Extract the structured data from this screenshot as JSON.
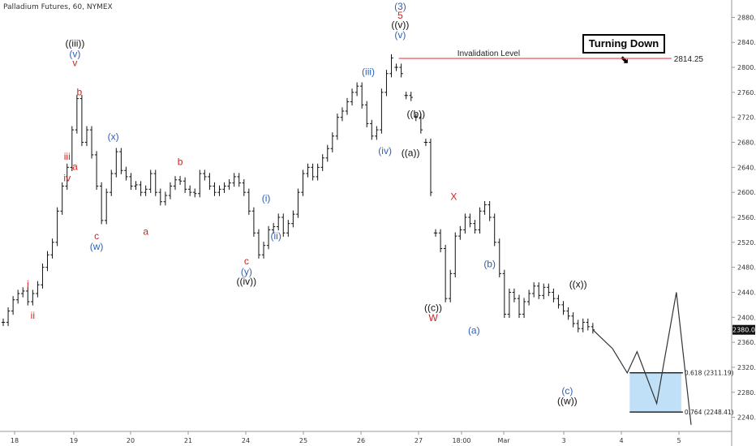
{
  "title": "Palladium Futures, 60, NYMEX",
  "turning_down": "Turning Down",
  "turning_down_arrow": "⬊",
  "colors": {
    "price": "#111111",
    "red": "#d32020",
    "blue": "#2f5fb8",
    "black": "#111111",
    "invalidation": "#e5464f",
    "target_box": "#bfe0f7",
    "target_border": "#000000"
  },
  "chart_data": {
    "type": "line",
    "title": "Palladium Futures, 60, NYMEX",
    "ylim": [
      2220,
      2900
    ],
    "y_ticks": [
      2240.0,
      2280.0,
      2320.0,
      2360.0,
      2400.0,
      2440.0,
      2480.0,
      2520.0,
      2560.0,
      2600.0,
      2640.0,
      2680.0,
      2720.0,
      2760.0,
      2800.0,
      2840.0,
      2880.0
    ],
    "x_ticks": [
      "18",
      "19",
      "20",
      "21",
      "24",
      "25",
      "26",
      "27",
      "18:00",
      "Mar",
      "3",
      "4",
      "5"
    ],
    "current_price_label": "2380.0",
    "invalidation": {
      "label": "Invalidation Level",
      "value": 2814.25,
      "value_label": "2814.25"
    },
    "fib_levels": [
      {
        "label": "0.618 (2311.19)",
        "value": 2311.19
      },
      {
        "label": "0.764 (2248.41)",
        "value": 2248.41
      }
    ],
    "price_path": [
      [
        0,
        2392
      ],
      [
        1,
        2410
      ],
      [
        2,
        2428
      ],
      [
        3,
        2438
      ],
      [
        4,
        2442
      ],
      [
        5,
        2425
      ],
      [
        6,
        2438
      ],
      [
        7,
        2452
      ],
      [
        8,
        2480
      ],
      [
        9,
        2500
      ],
      [
        10,
        2520
      ],
      [
        11,
        2570
      ],
      [
        12,
        2610
      ],
      [
        13,
        2640
      ],
      [
        14,
        2700
      ],
      [
        15,
        2750
      ],
      [
        16,
        2680
      ],
      [
        17,
        2700
      ],
      [
        18,
        2660
      ],
      [
        19,
        2610
      ],
      [
        20,
        2555
      ],
      [
        21,
        2600
      ],
      [
        22,
        2630
      ],
      [
        23,
        2665
      ],
      [
        24,
        2635
      ],
      [
        25,
        2625
      ],
      [
        26,
        2610
      ],
      [
        27,
        2612
      ],
      [
        28,
        2600
      ],
      [
        29,
        2605
      ],
      [
        30,
        2630
      ],
      [
        31,
        2600
      ],
      [
        32,
        2585
      ],
      [
        33,
        2595
      ],
      [
        34,
        2610
      ],
      [
        35,
        2620
      ],
      [
        36,
        2618
      ],
      [
        37,
        2605
      ],
      [
        38,
        2600
      ],
      [
        39,
        2598
      ],
      [
        40,
        2630
      ],
      [
        41,
        2625
      ],
      [
        42,
        2610
      ],
      [
        43,
        2600
      ],
      [
        44,
        2605
      ],
      [
        45,
        2610
      ],
      [
        46,
        2615
      ],
      [
        47,
        2625
      ],
      [
        48,
        2615
      ],
      [
        49,
        2600
      ],
      [
        50,
        2570
      ],
      [
        51,
        2535
      ],
      [
        52,
        2500
      ],
      [
        53,
        2515
      ],
      [
        54,
        2540
      ],
      [
        55,
        2545
      ],
      [
        56,
        2560
      ],
      [
        57,
        2535
      ],
      [
        58,
        2550
      ],
      [
        59,
        2565
      ],
      [
        60,
        2600
      ],
      [
        61,
        2630
      ],
      [
        62,
        2640
      ],
      [
        63,
        2625
      ],
      [
        64,
        2640
      ],
      [
        65,
        2655
      ],
      [
        66,
        2670
      ],
      [
        67,
        2690
      ],
      [
        68,
        2720
      ],
      [
        69,
        2730
      ],
      [
        70,
        2745
      ],
      [
        71,
        2760
      ],
      [
        72,
        2770
      ],
      [
        73,
        2740
      ],
      [
        74,
        2710
      ],
      [
        75,
        2690
      ],
      [
        76,
        2700
      ],
      [
        77,
        2760
      ],
      [
        78,
        2790
      ],
      [
        79,
        2815
      ]
    ],
    "segments": [
      [
        [
          80,
          2800
        ],
        [
          81,
          2790
        ]
      ],
      [
        [
          82,
          2755
        ],
        [
          83,
          2752
        ]
      ],
      [
        [
          84,
          2720
        ],
        [
          85,
          2700
        ]
      ],
      [
        [
          86,
          2680
        ],
        [
          87,
          2600
        ]
      ],
      [
        [
          88,
          2535
        ],
        [
          89,
          2510
        ],
        [
          90,
          2430
        ],
        [
          91,
          2470
        ],
        [
          92,
          2530
        ],
        [
          93,
          2540
        ],
        [
          94,
          2560
        ],
        [
          95,
          2550
        ],
        [
          96,
          2540
        ],
        [
          97,
          2570
        ],
        [
          98,
          2580
        ],
        [
          99,
          2560
        ],
        [
          100,
          2520
        ],
        [
          101,
          2470
        ],
        [
          102,
          2405
        ],
        [
          103,
          2440
        ],
        [
          104,
          2430
        ],
        [
          105,
          2405
        ],
        [
          106,
          2425
        ],
        [
          107,
          2438
        ],
        [
          108,
          2450
        ],
        [
          109,
          2435
        ],
        [
          110,
          2448
        ],
        [
          111,
          2440
        ],
        [
          112,
          2430
        ],
        [
          113,
          2420
        ],
        [
          114,
          2410
        ],
        [
          115,
          2402
        ],
        [
          116,
          2390
        ],
        [
          117,
          2382
        ],
        [
          118,
          2392
        ],
        [
          119,
          2385
        ],
        [
          120,
          2380
        ]
      ]
    ],
    "projection": [
      [
        120,
        2380
      ],
      [
        124,
        2350
      ],
      [
        127,
        2311
      ],
      [
        129,
        2345
      ],
      [
        133,
        2262
      ],
      [
        137,
        2440
      ],
      [
        140,
        2228
      ]
    ],
    "labels": [
      {
        "text": "i",
        "x": 5,
        "y": 2448,
        "color": "red"
      },
      {
        "text": "ii",
        "x": 6,
        "y": 2398,
        "color": "red"
      },
      {
        "text": "iii",
        "x": 13,
        "y": 2652,
        "color": "red"
      },
      {
        "text": "iv",
        "x": 13,
        "y": 2618,
        "color": "red"
      },
      {
        "text": "a",
        "x": 14.6,
        "y": 2636,
        "color": "red"
      },
      {
        "text": "b",
        "x": 15.5,
        "y": 2755,
        "color": "red"
      },
      {
        "text": "v",
        "x": 14.6,
        "y": 2802,
        "color": "red"
      },
      {
        "text": "(v)",
        "x": 14.6,
        "y": 2816,
        "color": "blue"
      },
      {
        "text": "((iii))",
        "x": 14.6,
        "y": 2833,
        "color": "black"
      },
      {
        "text": "c",
        "x": 19,
        "y": 2525,
        "color": "red"
      },
      {
        "text": "(w)",
        "x": 19,
        "y": 2508,
        "color": "blue"
      },
      {
        "text": "(x)",
        "x": 22.4,
        "y": 2684,
        "color": "blue"
      },
      {
        "text": "a",
        "x": 29,
        "y": 2532,
        "color": "red"
      },
      {
        "text": "b",
        "x": 36,
        "y": 2644,
        "color": "red"
      },
      {
        "text": "c",
        "x": 49.5,
        "y": 2485,
        "color": "red"
      },
      {
        "text": "(y)",
        "x": 49.5,
        "y": 2468,
        "color": "blue"
      },
      {
        "text": "((iv))",
        "x": 49.5,
        "y": 2452,
        "color": "black"
      },
      {
        "text": "(i)",
        "x": 53.5,
        "y": 2585,
        "color": "blue"
      },
      {
        "text": "(ii)",
        "x": 55.5,
        "y": 2525,
        "color": "blue"
      },
      {
        "text": "(iii)",
        "x": 74.3,
        "y": 2788,
        "color": "blue"
      },
      {
        "text": "(iv)",
        "x": 77.7,
        "y": 2661,
        "color": "blue"
      },
      {
        "text": "((b))",
        "x": 84,
        "y": 2720,
        "color": "black"
      },
      {
        "text": "((a))",
        "x": 82.9,
        "y": 2658,
        "color": "black"
      },
      {
        "text": "(3)",
        "x": 80.8,
        "y": 2892,
        "color": "blue"
      },
      {
        "text": "5",
        "x": 80.8,
        "y": 2878,
        "color": "red"
      },
      {
        "text": "((v))",
        "x": 80.8,
        "y": 2863,
        "color": "black"
      },
      {
        "text": "(v)",
        "x": 80.8,
        "y": 2847,
        "color": "blue"
      },
      {
        "text": "X",
        "x": 91.7,
        "y": 2588,
        "color": "red"
      },
      {
        "text": "((c))",
        "x": 87.5,
        "y": 2410,
        "color": "black"
      },
      {
        "text": "W",
        "x": 87.5,
        "y": 2394,
        "color": "red"
      },
      {
        "text": "(b)",
        "x": 99,
        "y": 2480,
        "color": "blue"
      },
      {
        "text": "(a)",
        "x": 95.8,
        "y": 2374,
        "color": "blue"
      },
      {
        "text": "((x))",
        "x": 117,
        "y": 2448,
        "color": "black"
      },
      {
        "text": "(c)",
        "x": 114.8,
        "y": 2277,
        "color": "blue"
      },
      {
        "text": "((w))",
        "x": 114.8,
        "y": 2261,
        "color": "black"
      }
    ]
  }
}
